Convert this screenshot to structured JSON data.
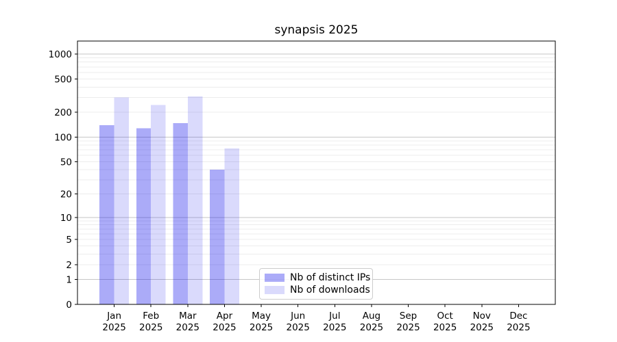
{
  "chart_data": {
    "type": "bar",
    "title": "synapsis 2025",
    "categories": [
      "Jan",
      "Feb",
      "Mar",
      "Apr",
      "May",
      "Jun",
      "Jul",
      "Aug",
      "Sep",
      "Oct",
      "Nov",
      "Dec"
    ],
    "category_year_label": "2025",
    "series": [
      {
        "name": "Nb of distinct IPs",
        "color": "rgba(10,10,235,0.34)",
        "swatch_hex": "#aaaaf8",
        "values": [
          140,
          128,
          147,
          40,
          0,
          0,
          0,
          0,
          0,
          0,
          0,
          0
        ]
      },
      {
        "name": "Nb of downloads",
        "color": "rgba(10,10,235,0.15)",
        "swatch_hex": "#d9d9fa",
        "values": [
          300,
          245,
          310,
          73,
          0,
          0,
          0,
          0,
          0,
          0,
          0,
          0
        ]
      }
    ],
    "yscale": "log1p",
    "yticks": [
      0,
      1,
      2,
      5,
      10,
      20,
      50,
      100,
      200,
      500,
      1000
    ],
    "ylim": [
      0,
      1430
    ],
    "grid": true,
    "legend_position": "lower-center",
    "styles": {
      "major_grid_color": "#c6c6c6",
      "minor_grid_color": "#ececec",
      "axis_color": "#000000",
      "text_color": "#000000",
      "background": "#ffffff"
    }
  }
}
